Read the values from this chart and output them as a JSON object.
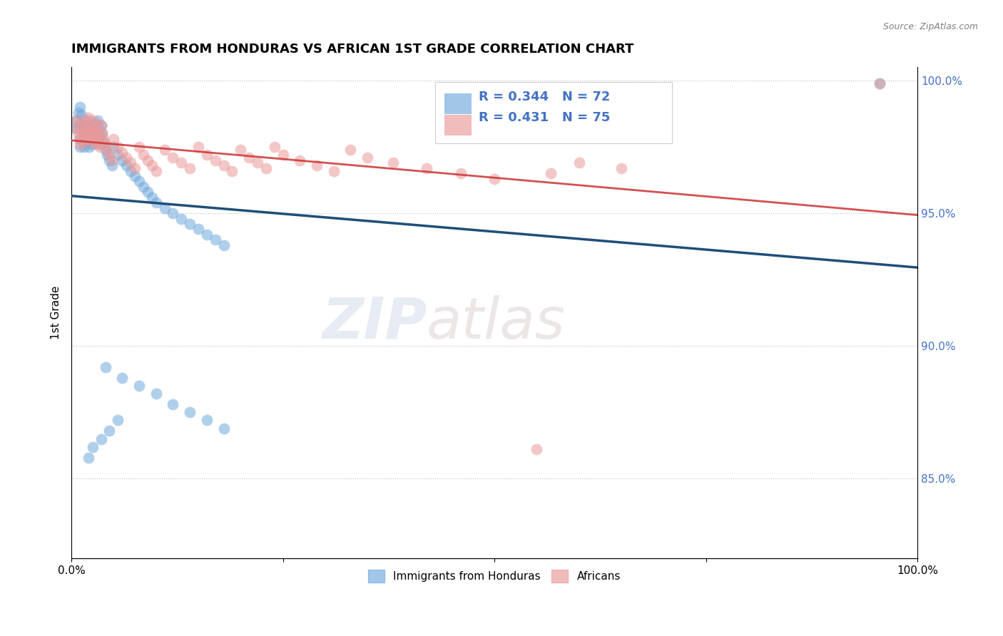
{
  "title": "IMMIGRANTS FROM HONDURAS VS AFRICAN 1ST GRADE CORRELATION CHART",
  "source_text": "Source: ZipAtlas.com",
  "ylabel": "1st Grade",
  "legend_labels": [
    "Immigrants from Honduras",
    "Africans"
  ],
  "blue_color": "#6fa8dc",
  "pink_color": "#ea9999",
  "blue_line_color": "#1f4e79",
  "pink_line_color": "#cc3333",
  "R_blue": 0.344,
  "N_blue": 72,
  "R_pink": 0.431,
  "N_pink": 75,
  "watermark_zip": "ZIP",
  "watermark_atlas": "atlas",
  "blue_x": [
    0.005,
    0.007,
    0.008,
    0.009,
    0.01,
    0.01,
    0.01,
    0.012,
    0.013,
    0.014,
    0.015,
    0.015,
    0.016,
    0.017,
    0.018,
    0.019,
    0.02,
    0.02,
    0.021,
    0.022,
    0.023,
    0.024,
    0.025,
    0.026,
    0.027,
    0.028,
    0.029,
    0.03,
    0.031,
    0.032,
    0.033,
    0.034,
    0.035,
    0.036,
    0.038,
    0.04,
    0.042,
    0.045,
    0.048,
    0.05,
    0.055,
    0.06,
    0.065,
    0.07,
    0.075,
    0.08,
    0.085,
    0.09,
    0.095,
    0.1,
    0.11,
    0.12,
    0.13,
    0.14,
    0.15,
    0.16,
    0.17,
    0.18,
    0.055,
    0.045,
    0.035,
    0.025,
    0.02,
    0.04,
    0.06,
    0.08,
    0.1,
    0.12,
    0.14,
    0.16,
    0.18,
    0.955
  ],
  "blue_y": [
    0.982,
    0.985,
    0.988,
    0.983,
    0.978,
    0.975,
    0.99,
    0.987,
    0.984,
    0.981,
    0.978,
    0.975,
    0.983,
    0.98,
    0.977,
    0.985,
    0.98,
    0.978,
    0.975,
    0.982,
    0.979,
    0.976,
    0.983,
    0.98,
    0.977,
    0.984,
    0.981,
    0.978,
    0.985,
    0.982,
    0.979,
    0.976,
    0.983,
    0.98,
    0.977,
    0.974,
    0.972,
    0.97,
    0.968,
    0.975,
    0.972,
    0.97,
    0.968,
    0.966,
    0.964,
    0.962,
    0.96,
    0.958,
    0.956,
    0.954,
    0.952,
    0.95,
    0.948,
    0.946,
    0.944,
    0.942,
    0.94,
    0.938,
    0.872,
    0.868,
    0.865,
    0.862,
    0.858,
    0.892,
    0.888,
    0.885,
    0.882,
    0.878,
    0.875,
    0.872,
    0.869,
    0.999
  ],
  "pink_x": [
    0.005,
    0.007,
    0.008,
    0.009,
    0.01,
    0.012,
    0.013,
    0.014,
    0.015,
    0.016,
    0.017,
    0.018,
    0.019,
    0.02,
    0.021,
    0.022,
    0.023,
    0.024,
    0.025,
    0.026,
    0.027,
    0.028,
    0.029,
    0.03,
    0.031,
    0.032,
    0.033,
    0.034,
    0.035,
    0.036,
    0.038,
    0.04,
    0.042,
    0.045,
    0.048,
    0.05,
    0.055,
    0.06,
    0.065,
    0.07,
    0.075,
    0.08,
    0.085,
    0.09,
    0.095,
    0.1,
    0.11,
    0.12,
    0.13,
    0.14,
    0.15,
    0.16,
    0.17,
    0.18,
    0.19,
    0.2,
    0.21,
    0.22,
    0.23,
    0.24,
    0.25,
    0.27,
    0.29,
    0.31,
    0.33,
    0.35,
    0.38,
    0.42,
    0.46,
    0.5,
    0.55,
    0.6,
    0.65,
    0.567,
    0.955
  ],
  "pink_y": [
    0.985,
    0.982,
    0.98,
    0.978,
    0.976,
    0.984,
    0.981,
    0.979,
    0.977,
    0.985,
    0.982,
    0.98,
    0.978,
    0.986,
    0.983,
    0.981,
    0.979,
    0.977,
    0.985,
    0.982,
    0.98,
    0.978,
    0.976,
    0.984,
    0.981,
    0.979,
    0.977,
    0.975,
    0.983,
    0.98,
    0.978,
    0.976,
    0.974,
    0.972,
    0.97,
    0.978,
    0.975,
    0.973,
    0.971,
    0.969,
    0.967,
    0.975,
    0.972,
    0.97,
    0.968,
    0.966,
    0.974,
    0.971,
    0.969,
    0.967,
    0.975,
    0.972,
    0.97,
    0.968,
    0.966,
    0.974,
    0.971,
    0.969,
    0.967,
    0.975,
    0.972,
    0.97,
    0.968,
    0.966,
    0.974,
    0.971,
    0.969,
    0.967,
    0.965,
    0.963,
    0.861,
    0.969,
    0.967,
    0.965,
    0.999
  ]
}
